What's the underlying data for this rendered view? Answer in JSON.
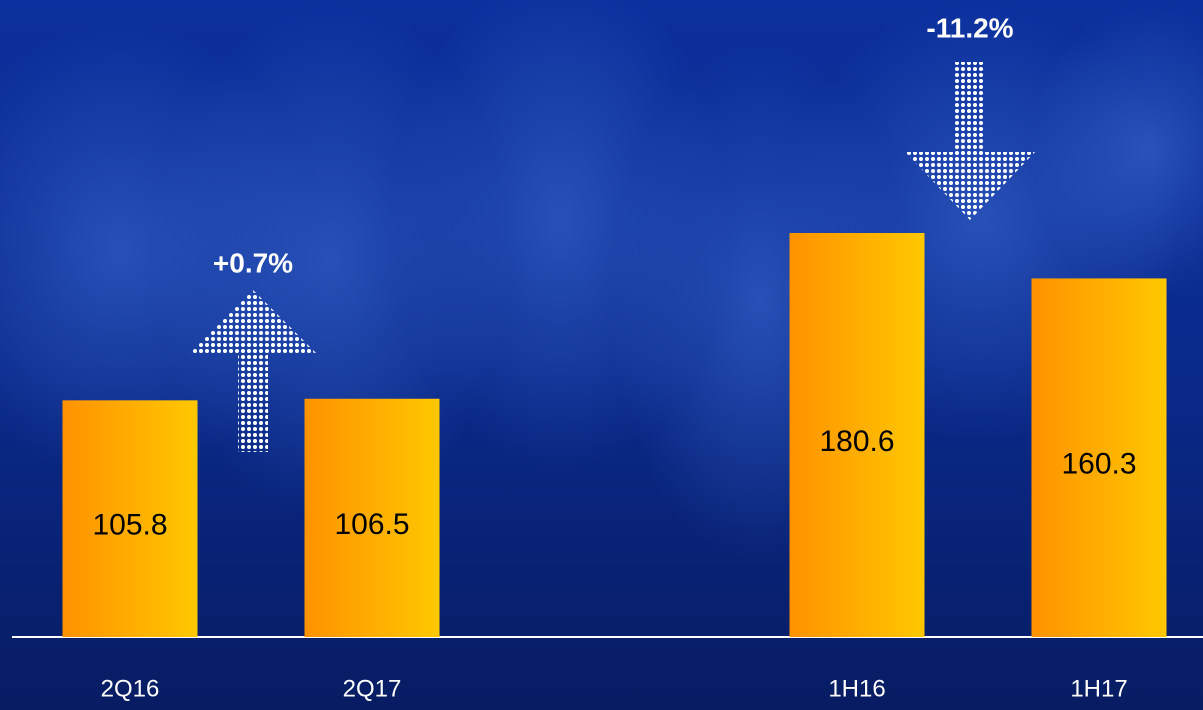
{
  "chart_data": {
    "type": "bar",
    "categories": [
      "2Q16",
      "2Q17",
      "1H16",
      "1H17"
    ],
    "values": [
      105.8,
      106.5,
      180.6,
      160.3
    ],
    "annotations": [
      "+0.7%",
      "-11.2%"
    ]
  }
}
